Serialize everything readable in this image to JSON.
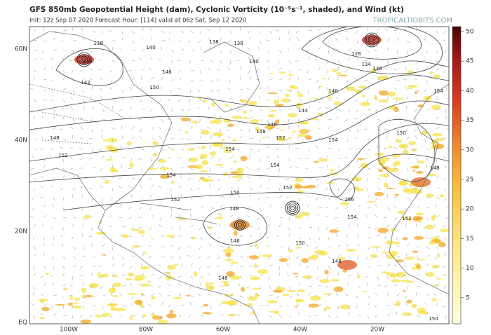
{
  "header": {
    "title": "GFS 850mb Geopotential Height (dam), Cyclonic Vorticity (10⁻⁵s⁻¹, shaded), and Wind (kt)",
    "subtitle": "Init: 12z Sep 07 2020   Forecast Hour: [114]   valid at 06z Sat, Sep 12 2020",
    "source": "TROPICALTIDBITS.COM"
  },
  "map": {
    "lat_labels": [
      "60N",
      "40N",
      "20N",
      "EQ"
    ],
    "lon_labels": [
      "100W",
      "80W",
      "60W",
      "40W",
      "20W"
    ],
    "contour_labels": [
      "138",
      "134",
      "142",
      "140",
      "146",
      "150",
      "138",
      "138",
      "140",
      "128",
      "134",
      "136",
      "140",
      "144",
      "146",
      "148",
      "152",
      "154",
      "154",
      "152",
      "150",
      "148",
      "146",
      "154",
      "152",
      "156",
      "154",
      "150",
      "148",
      "154",
      "152",
      "154",
      "150",
      "148",
      "148",
      "152",
      "148",
      "150"
    ]
  },
  "colorbar": {
    "ticks": [
      5,
      10,
      15,
      20,
      25,
      30,
      35,
      40,
      45,
      50
    ]
  }
}
